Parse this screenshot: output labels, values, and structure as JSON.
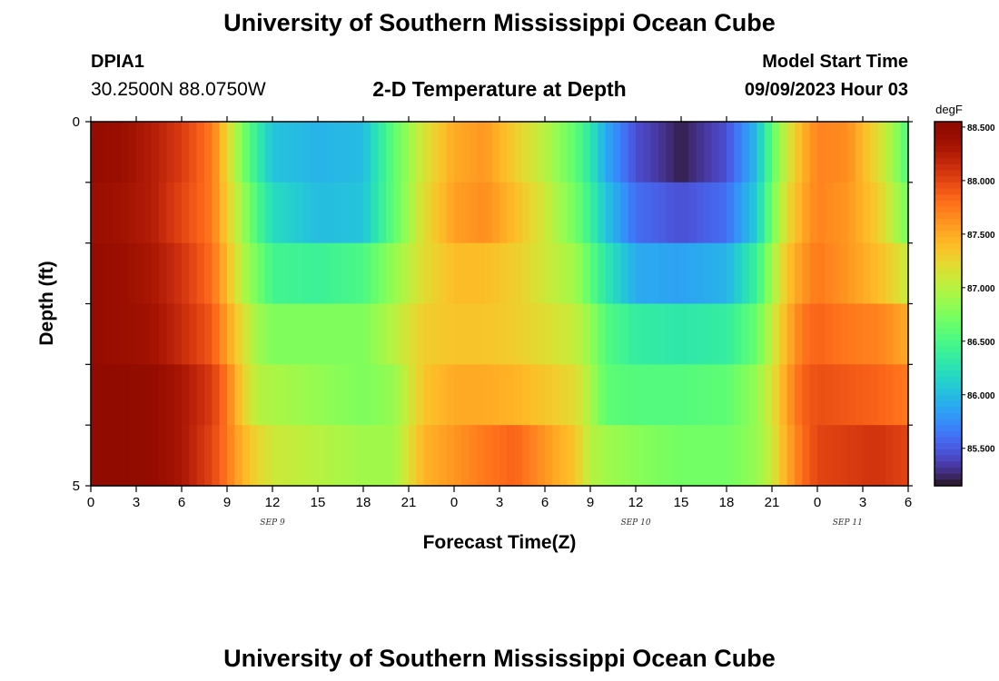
{
  "header": {
    "main_title": "University of Southern Mississippi Ocean Cube",
    "station_id": "DPIA1",
    "station_coords": "30.2500N  88.0750W",
    "chart_title": "2-D Temperature at Depth",
    "model_label": "Model Start Time",
    "model_time": "09/09/2023 Hour 03"
  },
  "footer": {
    "next_title": "University of Southern Mississippi Ocean Cube"
  },
  "chart_data": {
    "type": "heatmap",
    "title": "2-D Temperature at Depth",
    "xlabel": "Forecast Time(Z)",
    "ylabel": "Depth (ft)",
    "x_tick_labels": [
      "0",
      "3",
      "6",
      "9",
      "12",
      "15",
      "18",
      "21",
      "0",
      "3",
      "6",
      "9",
      "12",
      "15",
      "18",
      "21",
      "0",
      "3",
      "6"
    ],
    "x_range_hours": [
      0,
      54
    ],
    "date_labels": [
      {
        "text": "SEP 9",
        "hour": 12
      },
      {
        "text": "SEP 10",
        "hour": 36
      },
      {
        "text": "SEP 11",
        "hour": 50
      }
    ],
    "y_tick_labels": [
      "0",
      "5"
    ],
    "y_range": [
      0,
      5
    ],
    "y_inverted": true,
    "colorbar": {
      "label": "degF",
      "min": 85.15,
      "max": 88.55,
      "tick_labels": [
        "85.500",
        "86.000",
        "86.500",
        "87.000",
        "87.500",
        "88.000",
        "88.500"
      ],
      "colormap": "turbo"
    },
    "depth_bins_ft": [
      0,
      1,
      2,
      3,
      4,
      5
    ],
    "time_knots_hours": [
      0,
      2,
      4,
      6,
      8,
      9,
      10,
      11,
      12,
      15,
      18,
      20,
      22,
      24,
      26,
      28,
      30,
      32,
      33,
      34,
      36,
      39,
      42,
      44,
      45,
      46,
      47,
      48,
      50,
      52,
      53,
      54
    ],
    "temperature_by_depth": [
      [
        88.45,
        88.4,
        88.25,
        88.05,
        87.75,
        87.25,
        86.75,
        86.35,
        86.05,
        85.95,
        86.0,
        86.6,
        87.15,
        87.5,
        87.6,
        87.3,
        87.0,
        86.6,
        86.3,
        85.9,
        85.45,
        85.2,
        85.45,
        86.0,
        86.6,
        87.1,
        87.45,
        87.7,
        87.65,
        87.2,
        86.9,
        86.5
      ],
      [
        88.4,
        88.35,
        88.25,
        88.0,
        87.75,
        87.3,
        86.9,
        86.5,
        86.2,
        86.0,
        86.05,
        86.6,
        87.2,
        87.55,
        87.65,
        87.4,
        87.1,
        86.7,
        86.4,
        86.05,
        85.6,
        85.45,
        85.6,
        86.1,
        86.7,
        87.2,
        87.5,
        87.7,
        87.6,
        87.3,
        87.0,
        86.7
      ],
      [
        88.45,
        88.4,
        88.3,
        88.1,
        87.8,
        87.4,
        87.0,
        86.7,
        86.45,
        86.4,
        86.5,
        86.85,
        87.2,
        87.4,
        87.4,
        87.3,
        87.1,
        86.9,
        86.6,
        86.3,
        85.9,
        85.85,
        85.95,
        86.4,
        86.9,
        87.35,
        87.6,
        87.75,
        87.6,
        87.4,
        87.25,
        87.05
      ],
      [
        88.45,
        88.4,
        88.35,
        88.15,
        87.9,
        87.55,
        87.2,
        86.9,
        86.75,
        86.75,
        86.75,
        87.0,
        87.3,
        87.35,
        87.35,
        87.3,
        87.2,
        87.05,
        86.85,
        86.55,
        86.35,
        86.3,
        86.35,
        86.65,
        87.05,
        87.45,
        87.75,
        87.85,
        87.75,
        87.7,
        87.6,
        87.5
      ],
      [
        88.5,
        88.5,
        88.45,
        88.3,
        88.05,
        87.75,
        87.3,
        87.0,
        86.95,
        86.85,
        86.75,
        86.85,
        87.35,
        87.5,
        87.5,
        87.45,
        87.35,
        87.2,
        86.95,
        86.6,
        86.55,
        86.55,
        86.6,
        86.85,
        87.15,
        87.55,
        87.85,
        87.95,
        87.9,
        87.85,
        87.8,
        87.75
      ],
      [
        88.5,
        88.5,
        88.45,
        88.3,
        88.0,
        87.75,
        87.45,
        87.25,
        87.1,
        87.0,
        86.9,
        86.9,
        87.45,
        87.6,
        87.75,
        87.85,
        87.6,
        87.35,
        87.0,
        86.9,
        86.8,
        86.7,
        86.7,
        86.85,
        87.1,
        87.5,
        87.8,
        88.0,
        88.05,
        88.1,
        88.05,
        88.0
      ]
    ]
  }
}
